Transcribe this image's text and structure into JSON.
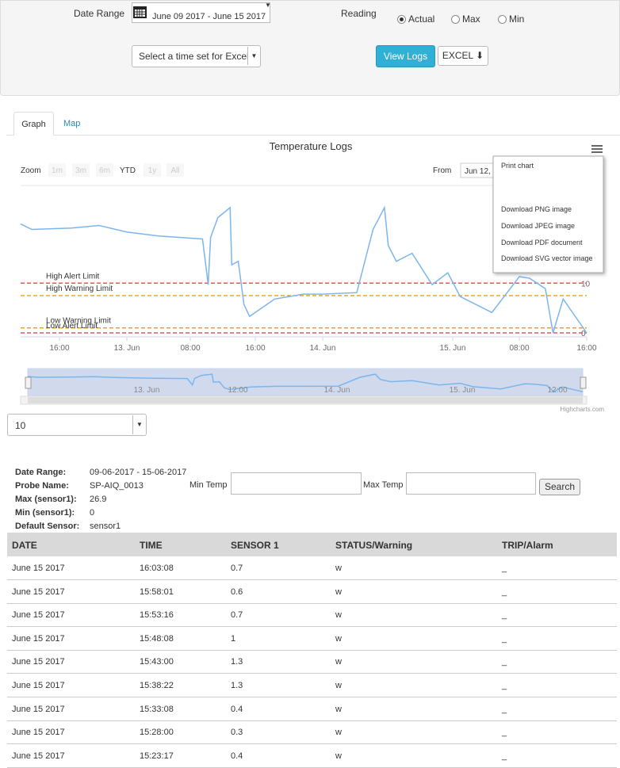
{
  "filters": {
    "date_range_label": "Date Range",
    "date_range": "June 09 2017 - June 15 2017",
    "reading_label": "Reading",
    "readings": [
      "Actual",
      "Max",
      "Min"
    ],
    "excel_select": "Select a time set for Excel",
    "view_logs": "View Logs",
    "excel": "EXCEL"
  },
  "tabs": [
    "Graph",
    "Map"
  ],
  "chart_data": {
    "type": "line",
    "title": "Temperature Logs",
    "zoom_label": "Zoom",
    "zoom_buttons": [
      "1m",
      "3m",
      "6m",
      "YTD",
      "1y",
      "All"
    ],
    "from_label": "From",
    "from_value": "Jun 12,",
    "export_menu": [
      "Print chart",
      "Download PNG image",
      "Download JPEG image",
      "Download PDF document",
      "Download SVG vector image"
    ],
    "x": [
      11.5,
      12.8,
      17.4,
      20.7,
      24,
      28,
      33.5,
      34.2,
      34.5,
      35.4,
      36.9,
      37.1,
      37.9,
      38.6,
      39.3,
      40,
      42.3,
      45.7,
      48,
      54.3,
      57.3,
      59.4,
      60.1,
      61.6,
      64.5,
      68.2,
      71.1,
      72.9,
      76.7,
      80,
      81.2,
      83.1,
      84,
      85.2,
      88
    ],
    "series": [
      {
        "color": "#7cb5ec",
        "values": [
          21.9,
          20.8,
          21.1,
          21.6,
          20.3,
          19.5,
          18.9,
          9.7,
          19.2,
          23.2,
          25.2,
          13.7,
          14.4,
          5.7,
          3.3,
          4.1,
          6.8,
          7.8,
          7.8,
          8.1,
          20.8,
          25.2,
          17.6,
          14.4,
          16,
          9.7,
          12.1,
          7.3,
          4.1,
          11.3,
          11,
          8.9,
          0,
          6.8,
          0
        ]
      }
    ],
    "xlim": [
      11.5,
      88
    ],
    "xticks": [
      {
        "value": 16,
        "label": "16:00"
      },
      {
        "value": 24,
        "label": "13. Jun"
      },
      {
        "value": 32,
        "label": "08:00"
      },
      {
        "value": 40,
        "label": "16:00"
      },
      {
        "value": 48,
        "label": "14. Jun"
      },
      {
        "value": 72,
        "label": "15. Jun"
      },
      {
        "value": 80,
        "label": "08:00"
      },
      {
        "value": 88,
        "label": "16:00"
      }
    ],
    "ylim": [
      -0.8,
      28.7
    ],
    "yticks": [
      0,
      10
    ],
    "plot_lines": [
      {
        "label": "High Alert Limit",
        "value": 10,
        "color": "#e05a5a"
      },
      {
        "label": "High Warning Limit",
        "value": 7.5,
        "color": "#e6a817"
      },
      {
        "label": "Low Warning Limit",
        "value": 1,
        "color": "#e6a817"
      },
      {
        "label": "Low Alert Limit",
        "value": 0,
        "color": "#e05a5a"
      }
    ],
    "navigator_labels": [
      "13. Jun",
      "12:00",
      "14. Jun",
      "15. Jun",
      "12:00"
    ],
    "credits": "Highcharts.com"
  },
  "page_size": "10",
  "summary": [
    [
      "Date Range:",
      "09-06-2017 - 15-06-2017"
    ],
    [
      "Probe Name:",
      "SP-AIQ_0013"
    ],
    [
      "Max (sensor1):",
      26.9
    ],
    [
      "Min (sensor1):",
      0
    ],
    [
      "Default Sensor:",
      "sensor1"
    ]
  ],
  "search": {
    "min_label": "Min Temp",
    "max_label": "Max Temp",
    "button": "Search"
  },
  "table": {
    "headers": [
      "DATE",
      "TIME",
      "SENSOR 1",
      "STATUS/Warning",
      "TRIP/Alarm"
    ],
    "rows": [
      [
        "June 15 2017",
        "16:03:08",
        0.7,
        "w",
        "_"
      ],
      [
        "June 15 2017",
        "15:58:01",
        0.6,
        "w",
        "_"
      ],
      [
        "June 15 2017",
        "15:53:16",
        0.7,
        "w",
        "_"
      ],
      [
        "June 15 2017",
        "15:48:08",
        1,
        "w",
        "_"
      ],
      [
        "June 15 2017",
        "15:43:00",
        1.3,
        "w",
        "_"
      ],
      [
        "June 15 2017",
        "15:38:22",
        1.3,
        "w",
        "_"
      ],
      [
        "June 15 2017",
        "15:33:08",
        0.4,
        "w",
        "_"
      ],
      [
        "June 15 2017",
        "15:28:00",
        0.3,
        "w",
        "_"
      ],
      [
        "June 15 2017",
        "15:23:17",
        0.4,
        "w",
        "_"
      ]
    ]
  }
}
